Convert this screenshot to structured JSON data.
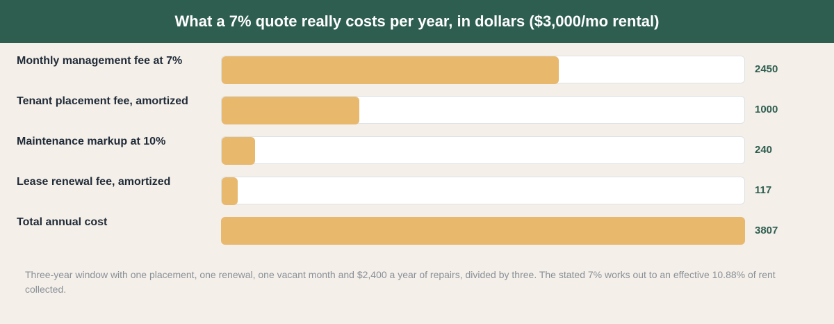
{
  "chart_data": {
    "type": "bar",
    "orientation": "horizontal",
    "title": "What a 7% quote really costs per year, in dollars ($3,000/mo rental)",
    "categories": [
      "Monthly management fee at 7%",
      "Tenant placement fee, amortized",
      "Maintenance markup at 10%",
      "Lease renewal fee, amortized",
      "Total annual cost"
    ],
    "values": [
      2450,
      1000,
      240,
      117,
      3807
    ],
    "value_labels": [
      "2450",
      "1000",
      "240",
      "117",
      "3807"
    ],
    "xlim": [
      0,
      3807
    ],
    "grid": false,
    "legend": "none",
    "note": "Three-year window with one placement, one renewal, one vacant month and $2,400 a year of repairs, divided by three. The stated 7% works out to an effective 10.88% of rent collected.",
    "colors": {
      "header_bg": "#2e5e50",
      "bar": "#e8b86d",
      "track": "#ffffff",
      "value_text": "#2e5e50",
      "page_bg": "#f4efe9"
    }
  }
}
